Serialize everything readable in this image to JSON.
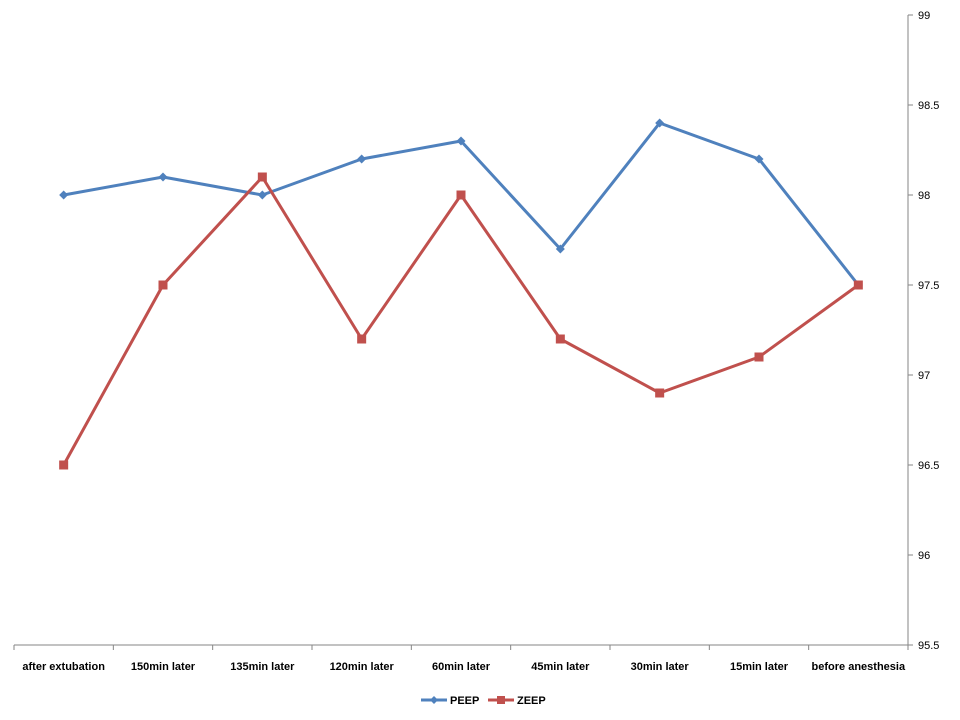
{
  "chart_data": {
    "type": "line",
    "title": "",
    "xlabel": "",
    "ylabel": "",
    "categories": [
      "after extubation",
      "150min later",
      "135min later",
      "120min later",
      "60min later",
      "45min later",
      "30min later",
      "15min later",
      "before anesthesia"
    ],
    "ylim": [
      95.5,
      99
    ],
    "yticks": [
      95.5,
      96,
      96.5,
      97,
      97.5,
      98,
      98.5,
      99
    ],
    "ytick_labels": [
      "95.5",
      "96",
      "96.5",
      "97",
      "97.5",
      "98",
      "98.5",
      "99"
    ],
    "y_axis_side": "right",
    "grid": false,
    "legend_position": "bottom",
    "series": [
      {
        "name": "PEEP",
        "color": "#4F81BD",
        "marker": "diamond",
        "values": [
          98.0,
          98.1,
          98.0,
          98.2,
          98.3,
          97.7,
          98.4,
          98.2,
          97.5
        ]
      },
      {
        "name": "ZEEP",
        "color": "#C0504D",
        "marker": "square",
        "values": [
          96.5,
          97.5,
          98.1,
          97.2,
          98.0,
          97.2,
          96.9,
          97.1,
          97.5
        ]
      }
    ]
  }
}
